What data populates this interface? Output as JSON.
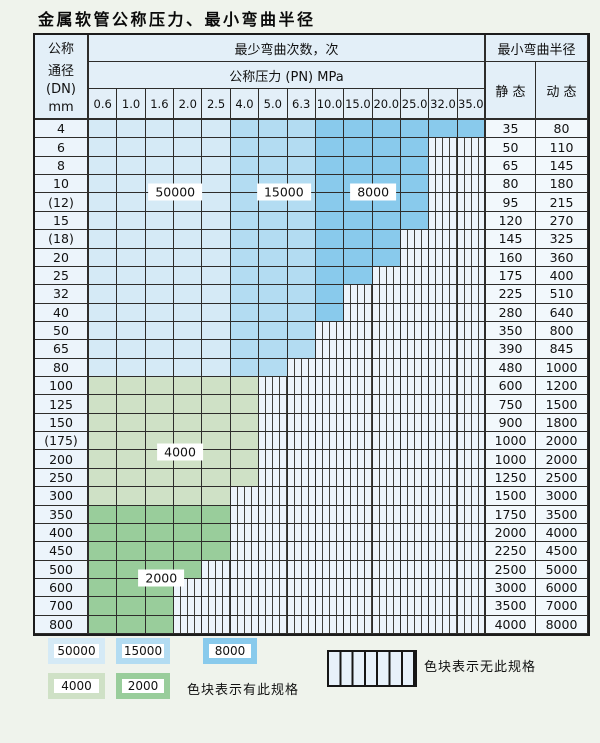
{
  "title": "金属软管公称压力、最小弯曲半径",
  "table": {
    "dn_header_lines": [
      "公称",
      "通径",
      "(DN)",
      "mm"
    ],
    "cycles_header": "最少弯曲次数，次",
    "pressure_header": "公称压力 (PN) MPa",
    "pressure_columns": [
      "0.6",
      "1.0",
      "1.6",
      "2.0",
      "2.5",
      "4.0",
      "5.0",
      "6.3",
      "10.0",
      "15.0",
      "20.0",
      "25.0",
      "32.0",
      "35.0"
    ],
    "radius_header": "最小弯曲半径",
    "static_header": "静 态",
    "dynamic_header": "动 态",
    "rows": [
      {
        "dn": "4",
        "colored": 14,
        "tone": "blue",
        "static": "35",
        "dynamic": "80"
      },
      {
        "dn": "6",
        "colored": 12,
        "tone": "blue",
        "static": "50",
        "dynamic": "110"
      },
      {
        "dn": "8",
        "colored": 12,
        "tone": "blue",
        "static": "65",
        "dynamic": "145"
      },
      {
        "dn": "10",
        "colored": 12,
        "tone": "blue",
        "static": "80",
        "dynamic": "180"
      },
      {
        "dn": "(12)",
        "colored": 12,
        "tone": "blue",
        "static": "95",
        "dynamic": "215"
      },
      {
        "dn": "15",
        "colored": 12,
        "tone": "blue",
        "static": "120",
        "dynamic": "270"
      },
      {
        "dn": "(18)",
        "colored": 11,
        "tone": "blue",
        "static": "145",
        "dynamic": "325"
      },
      {
        "dn": "20",
        "colored": 11,
        "tone": "blue",
        "static": "160",
        "dynamic": "360"
      },
      {
        "dn": "25",
        "colored": 10,
        "tone": "blue",
        "static": "175",
        "dynamic": "400"
      },
      {
        "dn": "32",
        "colored": 9,
        "tone": "blue",
        "static": "225",
        "dynamic": "510"
      },
      {
        "dn": "40",
        "colored": 9,
        "tone": "blue",
        "static": "280",
        "dynamic": "640"
      },
      {
        "dn": "50",
        "colored": 8,
        "tone": "blue",
        "static": "350",
        "dynamic": "800"
      },
      {
        "dn": "65",
        "colored": 8,
        "tone": "blue",
        "static": "390",
        "dynamic": "845"
      },
      {
        "dn": "80",
        "colored": 7,
        "tone": "blue",
        "static": "480",
        "dynamic": "1000"
      },
      {
        "dn": "100",
        "colored": 6,
        "tone": "green4",
        "static": "600",
        "dynamic": "1200"
      },
      {
        "dn": "125",
        "colored": 6,
        "tone": "green4",
        "static": "750",
        "dynamic": "1500"
      },
      {
        "dn": "150",
        "colored": 6,
        "tone": "green4",
        "static": "900",
        "dynamic": "1800"
      },
      {
        "dn": "(175)",
        "colored": 6,
        "tone": "green4",
        "static": "1000",
        "dynamic": "2000"
      },
      {
        "dn": "200",
        "colored": 6,
        "tone": "green4",
        "static": "1000",
        "dynamic": "2000"
      },
      {
        "dn": "250",
        "colored": 6,
        "tone": "green4",
        "static": "1250",
        "dynamic": "2500"
      },
      {
        "dn": "300",
        "colored": 5,
        "tone": "green4",
        "static": "1500",
        "dynamic": "3000"
      },
      {
        "dn": "350",
        "colored": 5,
        "tone": "green2",
        "static": "1750",
        "dynamic": "3500"
      },
      {
        "dn": "400",
        "colored": 5,
        "tone": "green2",
        "static": "2000",
        "dynamic": "4000"
      },
      {
        "dn": "450",
        "colored": 5,
        "tone": "green2",
        "static": "2250",
        "dynamic": "4500"
      },
      {
        "dn": "500",
        "colored": 4,
        "tone": "green2",
        "static": "2500",
        "dynamic": "5000"
      },
      {
        "dn": "600",
        "colored": 3,
        "tone": "green2",
        "static": "3000",
        "dynamic": "6000"
      },
      {
        "dn": "700",
        "colored": 3,
        "tone": "green2",
        "static": "3500",
        "dynamic": "7000"
      },
      {
        "dn": "800",
        "colored": 3,
        "tone": "green2",
        "static": "4000",
        "dynamic": "8000"
      }
    ],
    "zone_labels": [
      {
        "label": "50000",
        "col": 2.97,
        "row": 3.8
      },
      {
        "label": "15000",
        "col": 6.8,
        "row": 3.8
      },
      {
        "label": "8000",
        "col": 9.95,
        "row": 3.8
      },
      {
        "label": "4000",
        "col": 3.14,
        "row": 18.0
      },
      {
        "label": "2000",
        "col": 2.48,
        "row": 24.85
      }
    ]
  },
  "colors": {
    "cycles_50000": "#d5eaf6",
    "cycles_15000": "#b3dcf2",
    "cycles_8000": "#89caec",
    "cycles_4000": "#cfe1c6",
    "cycles_2000": "#99cd9b",
    "header_bg": "#e3eff8",
    "hatch_bg": "#edf4fb",
    "border": "#2e2d2b"
  },
  "legend": {
    "swatches": [
      {
        "label": "50000",
        "tone": "cycles_50000"
      },
      {
        "label": "15000",
        "tone": "cycles_15000"
      },
      {
        "label": "8000",
        "tone": "cycles_8000"
      },
      {
        "label": "4000",
        "tone": "cycles_4000"
      },
      {
        "label": "2000",
        "tone": "cycles_2000"
      }
    ],
    "available_note": "色块表示有此规格",
    "unavailable_note": "色块表示无此规格"
  }
}
